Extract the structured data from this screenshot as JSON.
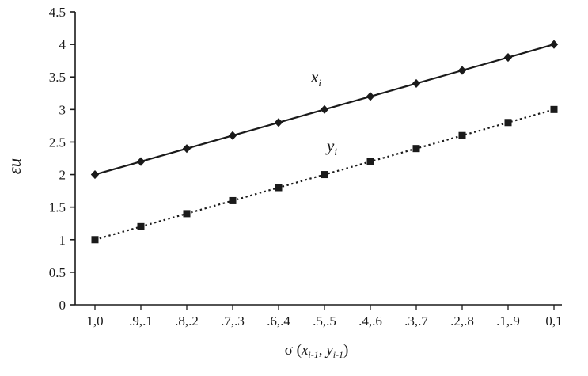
{
  "chart_data": {
    "type": "line",
    "title": "",
    "ylabel": "εu",
    "xlabel": "σ (x i-1, y i-1)",
    "xaxis_title_parts": {
      "prefix": "σ (",
      "x_var": "x",
      "x_sub": "i-1",
      "separator": ", ",
      "y_var": "y",
      "y_sub": "i-1",
      "suffix": ")"
    },
    "categories": [
      "1,0",
      ".9,.1",
      ".8,.2",
      ".7,.3",
      ".6,.4",
      ".5,.5",
      ".4,.6",
      ".3,.7",
      ".2,.8",
      ".1,.9",
      "0,1"
    ],
    "series": [
      {
        "name": "x i",
        "label_var": "x",
        "label_sub": "i",
        "values": [
          2,
          2.2,
          2.4,
          2.6,
          2.8,
          3,
          3.2,
          3.4,
          3.6,
          3.8,
          4
        ],
        "marker": "diamond",
        "line": "solid",
        "color": "#1a1a1a"
      },
      {
        "name": "y i",
        "label_var": "y",
        "label_sub": "i",
        "values": [
          1,
          1.2,
          1.4,
          1.6,
          1.8,
          2,
          2.2,
          2.4,
          2.6,
          2.8,
          3
        ],
        "marker": "square",
        "line": "dotted",
        "color": "#1a1a1a"
      }
    ],
    "ylim": [
      0,
      4.5
    ],
    "ytick_step": 0.5,
    "grid": false,
    "legend": "inline-labels",
    "axis_color": "#1a1a1a"
  }
}
